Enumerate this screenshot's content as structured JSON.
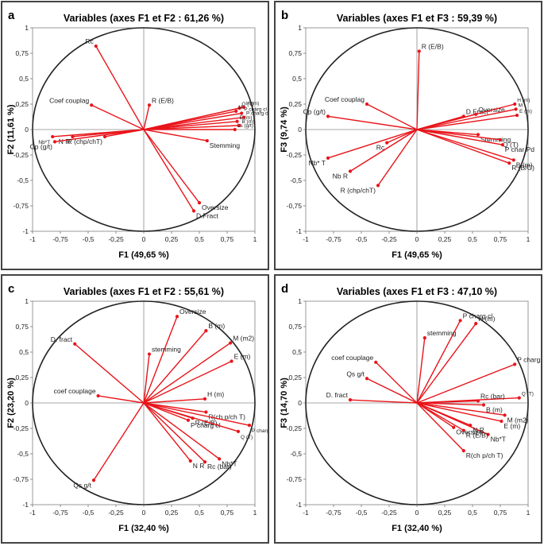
{
  "figure": {
    "panel_letters": [
      "a",
      "b",
      "c",
      "d"
    ]
  },
  "chart_data": [
    {
      "type": "scatter",
      "letter": "a",
      "title": "Variables (axes F1 et F2 : 61,26 %)",
      "xlabel": "F1 (49,65 %)",
      "ylabel": "F2 (11,61 %)",
      "xlim": [
        -1,
        1
      ],
      "ylim": [
        -1,
        1
      ],
      "xticks": [
        "-1",
        "-0,75",
        "-0,5",
        "-0,25",
        "0",
        "0,25",
        "0,5",
        "0,75",
        "1"
      ],
      "yticks": [
        "-1",
        "-0,75",
        "-0,5",
        "-0,25",
        "0",
        "0,25",
        "0,5",
        "0,75",
        "1"
      ],
      "vectors": [
        {
          "label": "Rc",
          "x": -0.43,
          "y": 0.82
        },
        {
          "label": "R (E/B)",
          "x": 0.05,
          "y": 0.24
        },
        {
          "label": "Coef couplag",
          "x": -0.47,
          "y": 0.24
        },
        {
          "label": "Nb*T",
          "x": -0.82,
          "y": -0.07
        },
        {
          "label": "N R",
          "x": -0.64,
          "y": -0.07
        },
        {
          "label": "Cp (g/t)",
          "x": -0.8,
          "y": -0.12
        },
        {
          "label": "R (chp/chT)",
          "x": -0.35,
          "y": -0.07
        },
        {
          "label": "Stemming",
          "x": 0.57,
          "y": -0.11
        },
        {
          "label": "Oversize",
          "x": 0.5,
          "y": -0.72
        },
        {
          "label": "D.Fract",
          "x": 0.45,
          "y": -0.8
        },
        {
          "label": "Q (T)",
          "x": 0.86,
          "y": 0.21
        },
        {
          "label": "H (m)",
          "x": 0.9,
          "y": 0.22
        },
        {
          "label": "M",
          "x": 0.83,
          "y": 0.18
        },
        {
          "label": "P charg cl",
          "x": 0.88,
          "y": 0.16
        },
        {
          "label": "P charg d",
          "x": 0.9,
          "y": 0.12
        },
        {
          "label": "E (m)",
          "x": 0.84,
          "y": 0.08
        },
        {
          "label": "B (m)",
          "x": 0.86,
          "y": 0.04
        },
        {
          "label": "Ls (g/t)",
          "x": 0.82,
          "y": 0.0
        }
      ]
    },
    {
      "type": "scatter",
      "letter": "b",
      "title": "Variables (axes F1 et F3 : 59,39 %)",
      "xlabel": "F1 (49,65 %)",
      "ylabel": "F3 (9,74 %)",
      "xlim": [
        -1,
        1
      ],
      "ylim": [
        -1,
        1
      ],
      "xticks": [
        "-1",
        "-0,75",
        "-0,5",
        "-0,25",
        "0",
        "0,25",
        "0,5",
        "0,75",
        "1"
      ],
      "yticks": [
        "-1",
        "-0,75",
        "-0,5",
        "-0,25",
        "0",
        "0,25",
        "0,5",
        "0,75",
        "1"
      ],
      "vectors": [
        {
          "label": "R (E/B)",
          "x": 0.02,
          "y": 0.77
        },
        {
          "label": "Coef couplag",
          "x": -0.45,
          "y": 0.25
        },
        {
          "label": "Cp (g/t)",
          "x": -0.8,
          "y": 0.13
        },
        {
          "label": "Rc",
          "x": -0.27,
          "y": -0.13
        },
        {
          "label": "Nb* T",
          "x": -0.8,
          "y": -0.28
        },
        {
          "label": "Nb R",
          "x": -0.6,
          "y": -0.41
        },
        {
          "label": "R (chp/chT)",
          "x": -0.35,
          "y": -0.55
        },
        {
          "label": "D.Fract",
          "x": 0.42,
          "y": 0.13
        },
        {
          "label": "Oversize",
          "x": 0.53,
          "y": 0.15
        },
        {
          "label": "H (m)",
          "x": 0.88,
          "y": 0.25
        },
        {
          "label": "M",
          "x": 0.89,
          "y": 0.2
        },
        {
          "label": "E (m)",
          "x": 0.9,
          "y": 0.14
        },
        {
          "label": "Stemming",
          "x": 0.55,
          "y": -0.05
        },
        {
          "label": "Q (T)",
          "x": 0.75,
          "y": -0.1
        },
        {
          "label": "P char Pd",
          "x": 0.77,
          "y": -0.15
        },
        {
          "label": "B (m)",
          "x": 0.87,
          "y": -0.3
        },
        {
          "label": "R (B/G)",
          "x": 0.83,
          "y": -0.33
        }
      ]
    },
    {
      "type": "scatter",
      "letter": "c",
      "title": "Variables (axes F1 et F2 : 55,61 %)",
      "xlabel": "F1 (32,40 %)",
      "ylabel": "F2 (23,20 %)",
      "xlim": [
        -1,
        1
      ],
      "ylim": [
        -1,
        1
      ],
      "xticks": [
        "-1",
        "-0,75",
        "-0,5",
        "-0,25",
        "0",
        "0,25",
        "0,5",
        "0,75",
        "1"
      ],
      "yticks": [
        "-1",
        "-0,75",
        "-0,5",
        "-0,25",
        "0",
        "0,25",
        "0,5",
        "0,75",
        "1"
      ],
      "vectors": [
        {
          "label": "D. fract",
          "x": -0.62,
          "y": 0.58
        },
        {
          "label": "coef couplage",
          "x": -0.41,
          "y": 0.07
        },
        {
          "label": "Qs g/t",
          "x": -0.45,
          "y": -0.76
        },
        {
          "label": "Oversize",
          "x": 0.3,
          "y": 0.85
        },
        {
          "label": "stemming",
          "x": 0.05,
          "y": 0.48
        },
        {
          "label": "B (m)",
          "x": 0.56,
          "y": 0.71
        },
        {
          "label": "M (m2)",
          "x": 0.78,
          "y": 0.59
        },
        {
          "label": "E (m)",
          "x": 0.79,
          "y": 0.41
        },
        {
          "label": "H (m)",
          "x": 0.55,
          "y": 0.04
        },
        {
          "label": "R(ch p/ch T)",
          "x": 0.56,
          "y": -0.09
        },
        {
          "label": "P charg pd",
          "x": 0.95,
          "y": -0.22
        },
        {
          "label": "R (E/B)",
          "x": 0.44,
          "y": -0.15
        },
        {
          "label": "P charg cl",
          "x": 0.4,
          "y": -0.17
        },
        {
          "label": "Q (T)",
          "x": 0.85,
          "y": -0.28
        },
        {
          "label": "Nb*T",
          "x": 0.68,
          "y": -0.55
        },
        {
          "label": "N R",
          "x": 0.42,
          "y": -0.57
        },
        {
          "label": "Rc (bar)",
          "x": 0.55,
          "y": -0.58
        }
      ]
    },
    {
      "type": "scatter",
      "letter": "d",
      "title": "Variables (axes F1 et F3 : 47,10 %)",
      "xlabel": "F1 (32,40 %)",
      "ylabel": "F3 (14,70 %)",
      "xlim": [
        -1,
        1
      ],
      "ylim": [
        -1,
        1
      ],
      "xticks": [
        "-1",
        "-0,75",
        "-0,5",
        "-0,25",
        "0",
        "0,25",
        "0,5",
        "0,75",
        "1"
      ],
      "yticks": [
        "-1",
        "-0,75",
        "-0,5",
        "-0,25",
        "0",
        "0,25",
        "0,5",
        "0,75",
        "1"
      ],
      "vectors": [
        {
          "label": "P charg cl",
          "x": 0.39,
          "y": 0.81
        },
        {
          "label": "H (m)",
          "x": 0.53,
          "y": 0.78
        },
        {
          "label": "stemming",
          "x": 0.07,
          "y": 0.64
        },
        {
          "label": "coef couplage",
          "x": -0.37,
          "y": 0.4
        },
        {
          "label": "Qs g/t",
          "x": -0.45,
          "y": 0.24
        },
        {
          "label": "D. fract",
          "x": -0.6,
          "y": 0.03
        },
        {
          "label": "P charg pd",
          "x": 0.88,
          "y": 0.38
        },
        {
          "label": "Q (T)",
          "x": 0.92,
          "y": 0.05
        },
        {
          "label": "Rc (bar)",
          "x": 0.55,
          "y": 0.02
        },
        {
          "label": "B (m)",
          "x": 0.6,
          "y": -0.02
        },
        {
          "label": "M (m2)",
          "x": 0.79,
          "y": -0.12
        },
        {
          "label": "E (m)",
          "x": 0.76,
          "y": -0.18
        },
        {
          "label": "Nb*T",
          "x": 0.64,
          "y": -0.31
        },
        {
          "label": "N R",
          "x": 0.48,
          "y": -0.22
        },
        {
          "label": "R (E/B)",
          "x": 0.42,
          "y": -0.27
        },
        {
          "label": "Oversize",
          "x": 0.33,
          "y": -0.24
        },
        {
          "label": "R(ch p/ch T)",
          "x": 0.42,
          "y": -0.47
        }
      ]
    }
  ]
}
